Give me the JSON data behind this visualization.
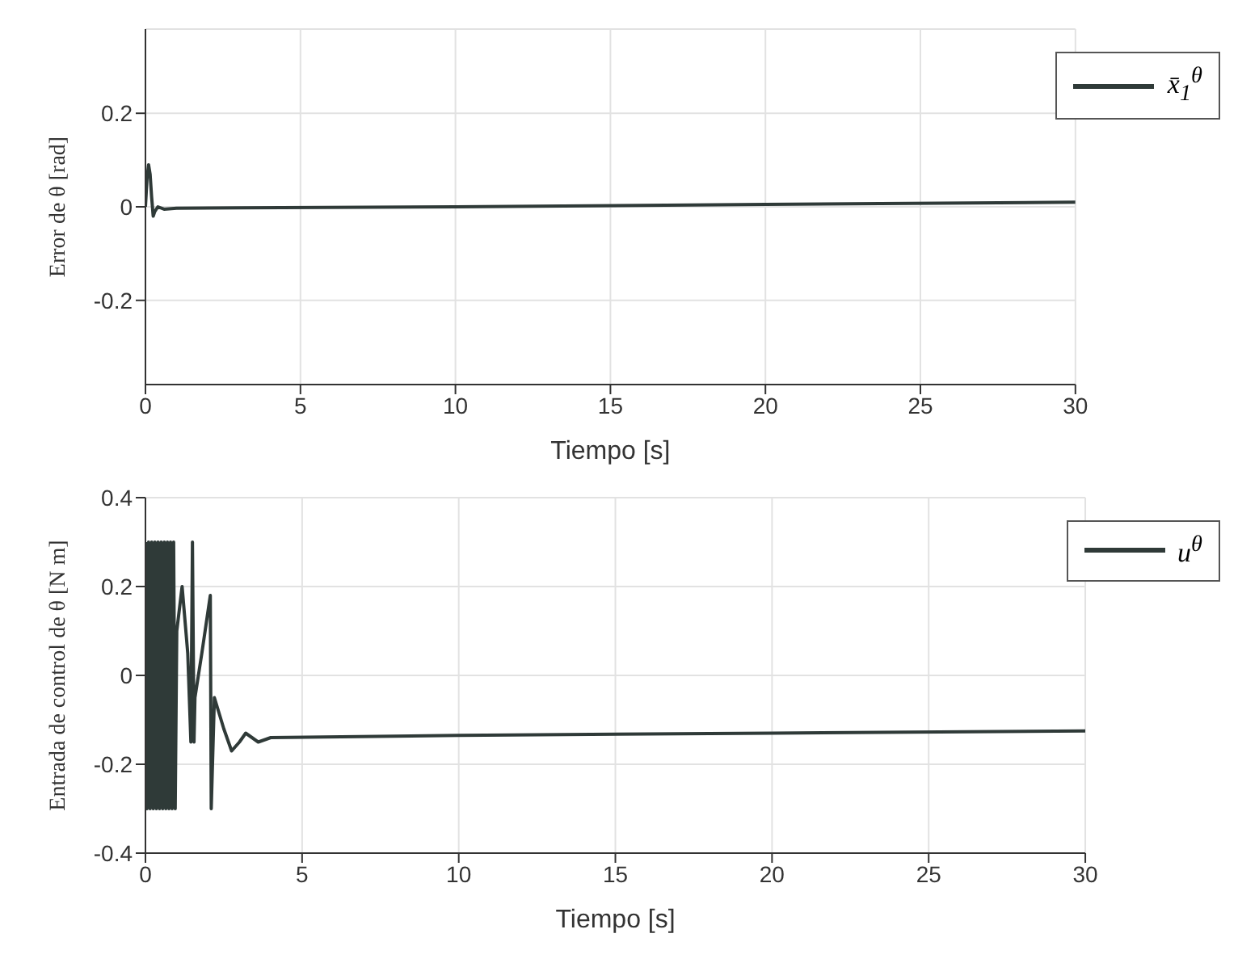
{
  "chart_data": [
    {
      "type": "line",
      "xlabel": "Tiempo [s]",
      "ylabel": "Error de θ [rad]",
      "xlim": [
        0,
        30
      ],
      "xticks": [
        0,
        5,
        10,
        15,
        20,
        25,
        30
      ],
      "ylim": [
        -0.38,
        0.38
      ],
      "yticks": [
        -0.2,
        0,
        0.2
      ],
      "grid": true,
      "legend": "top right",
      "series": [
        {
          "name": "x̄$_{1}$$^{θ}$",
          "color": "#2f3a38",
          "x": [
            0,
            0.05,
            0.1,
            0.15,
            0.2,
            0.25,
            0.3,
            0.4,
            0.6,
            1,
            3,
            10,
            20,
            30
          ],
          "values": [
            0,
            0.06,
            0.09,
            0.07,
            0.02,
            -0.02,
            -0.01,
            0,
            -0.005,
            -0.003,
            -0.002,
            0,
            0.005,
            0.01
          ]
        }
      ]
    },
    {
      "type": "line",
      "xlabel": "Tiempo [s]",
      "ylabel": "Entrada de control de θ [N m]",
      "xlim": [
        0,
        30
      ],
      "xticks": [
        0,
        5,
        10,
        15,
        20,
        25,
        30
      ],
      "ylim": [
        -0.4,
        0.4
      ],
      "yticks": [
        -0.4,
        -0.2,
        0,
        0.2,
        0.4
      ],
      "grid": true,
      "legend": "top right",
      "series": [
        {
          "name": "u$^{θ}$",
          "color": "#2f3a38",
          "x": [
            0,
            0.05,
            0.1,
            0.15,
            0.2,
            0.25,
            0.3,
            0.35,
            0.4,
            0.45,
            0.5,
            0.55,
            0.6,
            0.65,
            0.7,
            0.75,
            0.8,
            0.85,
            0.9,
            0.95,
            1.0,
            1.17,
            1.35,
            1.45,
            1.5,
            1.55,
            1.58,
            1.8,
            2.07,
            2.1,
            2.2,
            2.5,
            2.75,
            3.0,
            3.2,
            3.6,
            4.0,
            10,
            20,
            30
          ],
          "values": [
            0.3,
            -0.3,
            0.3,
            -0.3,
            0.3,
            -0.3,
            0.3,
            -0.3,
            0.3,
            -0.3,
            0.3,
            -0.3,
            0.3,
            -0.3,
            0.3,
            -0.3,
            0.3,
            -0.3,
            0.3,
            -0.3,
            0.1,
            0.2,
            0.05,
            -0.15,
            0.3,
            -0.15,
            -0.05,
            0.05,
            0.18,
            -0.3,
            -0.05,
            -0.12,
            -0.17,
            -0.15,
            -0.13,
            -0.15,
            -0.14,
            -0.135,
            -0.13,
            -0.125
          ]
        }
      ]
    }
  ]
}
